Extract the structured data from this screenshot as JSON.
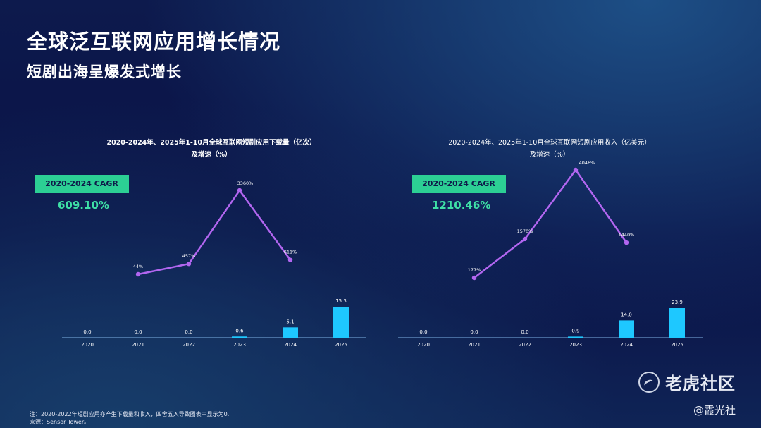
{
  "header": {
    "title": "全球泛互联网应用增长情况",
    "subtitle": "短剧出海呈爆发式增长"
  },
  "charts": [
    {
      "title_line1": "2020-2024年、2025年1-10月全球互联网短剧应用下载量（亿次）",
      "title_line2": "及增速（%）",
      "cagr_label": "2020-2024 CAGR",
      "cagr_value": "609.10%"
    },
    {
      "title_line1": "2020-2024年、2025年1-10月全球互联网短剧应用收入（亿美元）",
      "title_line2": "及增速（%）",
      "cagr_label": "2020-2024 CAGR",
      "cagr_value": "1210.46%"
    }
  ],
  "chart_data": [
    {
      "type": "bar",
      "title": "2020-2024年、2025年1-10月全球互联网短剧应用下载量（亿次）及增速（%）",
      "categories": [
        "2020",
        "2021",
        "2022",
        "2023",
        "2024",
        "2025"
      ],
      "values": [
        0.0,
        0.0,
        0.0,
        0.6,
        5.1,
        15.3
      ],
      "value_labels": [
        "0.0",
        "0.0",
        "0.0",
        "0.6",
        "5.1",
        "15.3"
      ],
      "growth": {
        "type": "line",
        "categories": [
          "2021",
          "2022",
          "2023",
          "2024"
        ],
        "values": [
          44,
          457,
          3360,
          611
        ],
        "labels": [
          "44%",
          "457%",
          "3360%",
          "611%"
        ]
      },
      "bar_color": "#1ec8ff",
      "line_color": "#b266f0"
    },
    {
      "type": "bar",
      "title": "2020-2024年、2025年1-10月全球互联网短剧应用收入（亿美元）及增速（%）",
      "categories": [
        "2020",
        "2021",
        "2022",
        "2023",
        "2024",
        "2025"
      ],
      "values": [
        0.0,
        0.0,
        0.0,
        0.9,
        14.0,
        23.9
      ],
      "value_labels": [
        "0.0",
        "0.0",
        "0.0",
        "0.9",
        "14.0",
        "23.9"
      ],
      "growth": {
        "type": "line",
        "categories": [
          "2021",
          "2022",
          "2023",
          "2024"
        ],
        "values": [
          177,
          1570,
          4046,
          1440
        ],
        "labels": [
          "177%",
          "1570%",
          "4046%",
          "1440%"
        ]
      },
      "bar_color": "#1ec8ff",
      "line_color": "#b266f0"
    }
  ],
  "footer": {
    "note": "注：2020-2022年短剧应用亦产生下载量和收入，四舍五入导致图表中显示为0.",
    "source": "来源：Sensor Tower。"
  },
  "watermark": {
    "logo_text": "老虎社区",
    "author": "@霞光社"
  }
}
